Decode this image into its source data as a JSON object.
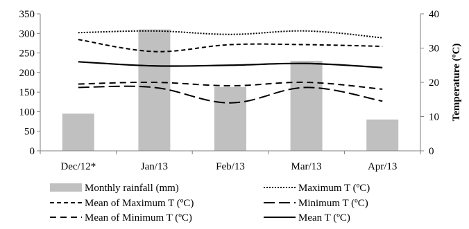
{
  "chart_data": {
    "type": "bar+line",
    "categories": [
      "Dec/12*",
      "Jan/13",
      "Feb/13",
      "Mar/13",
      "Apr/13"
    ],
    "bars": {
      "name": "Monthly rainfall (mm)",
      "axis": "left",
      "values": [
        95,
        310,
        163,
        230,
        80
      ],
      "color": "#c0c0c0"
    },
    "lines": [
      {
        "name": "Maximum T (ºC)",
        "style": "dotted",
        "axis": "right",
        "values": [
          34.5,
          35,
          34,
          35,
          33
        ]
      },
      {
        "name": "Mean of Maximum T (ºC)",
        "style": "short-dash",
        "axis": "right",
        "values": [
          32.5,
          29,
          31,
          31,
          30.5
        ]
      },
      {
        "name": "Minimum T (ºC)",
        "style": "long-dash",
        "axis": "right",
        "values": [
          18.5,
          18.5,
          14,
          18.5,
          14.5
        ]
      },
      {
        "name": "Mean of Minimum T (ºC)",
        "style": "dash",
        "axis": "right",
        "values": [
          19.5,
          20,
          19,
          20,
          18
        ]
      },
      {
        "name": "Mean T (ºC)",
        "style": "solid",
        "axis": "right",
        "values": [
          26,
          24.8,
          25,
          25.5,
          24.3
        ]
      }
    ],
    "left_axis": {
      "min": 0,
      "max": 350,
      "ticks": [
        0,
        50,
        100,
        150,
        200,
        250,
        300,
        350
      ],
      "label": ""
    },
    "right_axis": {
      "min": 0,
      "max": 40,
      "ticks": [
        0,
        10,
        20,
        30,
        40
      ],
      "label": "Temperature (ºC)"
    },
    "legend_placement": "bottom",
    "grid": false
  }
}
